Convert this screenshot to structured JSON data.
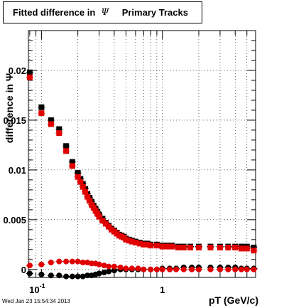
{
  "title": {
    "prefix": "Fitted difference in",
    "symbol": "Ψ",
    "suffix": "Primary Tracks"
  },
  "footer": "Wed Jan 23 15:54:34 2013",
  "chart_data": {
    "type": "scatter",
    "xlabel": "pT (GeV/c)",
    "ylabel": "difference in Ψ",
    "xscale": "log",
    "xlim": [
      0.078,
      5.9
    ],
    "ylim": [
      -0.0008,
      0.024
    ],
    "grid": true,
    "y_ticks": [
      {
        "value": 0,
        "label": "0"
      },
      {
        "value": 0.005,
        "label": "0.005"
      },
      {
        "value": 0.01,
        "label": "0.01"
      },
      {
        "value": 0.015,
        "label": "0.015"
      },
      {
        "value": 0.02,
        "label": "0.02"
      }
    ],
    "x_ticks": [
      {
        "value": 0.1,
        "base": "10",
        "exp": "-1"
      },
      {
        "value": 1,
        "base": "1",
        "exp": ""
      }
    ],
    "series": [
      {
        "color": "#000000",
        "marker": "square",
        "x": [
          0.08,
          0.1,
          0.12,
          0.14,
          0.16,
          0.18,
          0.2,
          0.21,
          0.22,
          0.23,
          0.24,
          0.25,
          0.26,
          0.27,
          0.28,
          0.29,
          0.3,
          0.32,
          0.34,
          0.36,
          0.38,
          0.4,
          0.42,
          0.44,
          0.46,
          0.48,
          0.5,
          0.53,
          0.56,
          0.6,
          0.65,
          0.7,
          0.75,
          0.8,
          0.9,
          1.0,
          1.1,
          1.2,
          1.35,
          1.5,
          1.7,
          2.0,
          2.5,
          3.0,
          3.5,
          4.0,
          4.5,
          5.0,
          5.7
        ],
        "y": [
          0.0198,
          0.0163,
          0.015,
          0.0141,
          0.0124,
          0.0108,
          0.0097,
          0.0091,
          0.0086,
          0.0081,
          0.0076,
          0.0072,
          0.0068,
          0.0064,
          0.0061,
          0.0058,
          0.0055,
          0.0051,
          0.0047,
          0.0044,
          0.0041,
          0.0039,
          0.0037,
          0.0035,
          0.0034,
          0.0033,
          0.0031,
          0.003,
          0.0029,
          0.0028,
          0.0027,
          0.0026,
          0.0026,
          0.0025,
          0.0025,
          0.0024,
          0.0024,
          0.0024,
          0.0023,
          0.0023,
          0.0023,
          0.0023,
          0.0023,
          0.0023,
          0.0023,
          0.0023,
          0.0023,
          0.0023,
          0.0022
        ]
      },
      {
        "color": "#e00000",
        "marker": "square",
        "x": [
          0.08,
          0.1,
          0.12,
          0.14,
          0.16,
          0.18,
          0.2,
          0.21,
          0.22,
          0.23,
          0.24,
          0.25,
          0.26,
          0.27,
          0.28,
          0.29,
          0.3,
          0.32,
          0.34,
          0.36,
          0.38,
          0.4,
          0.42,
          0.44,
          0.46,
          0.48,
          0.5,
          0.53,
          0.56,
          0.6,
          0.65,
          0.7,
          0.75,
          0.8,
          0.9,
          1.0,
          1.1,
          1.2,
          1.35,
          1.5,
          1.7,
          2.0,
          2.5,
          3.0,
          3.5,
          4.0,
          4.5,
          5.0,
          5.7
        ],
        "y": [
          0.0193,
          0.0157,
          0.0146,
          0.0137,
          0.0119,
          0.0104,
          0.0093,
          0.0088,
          0.0083,
          0.0078,
          0.0073,
          0.0069,
          0.0065,
          0.0062,
          0.0059,
          0.0056,
          0.0053,
          0.0049,
          0.0046,
          0.0043,
          0.004,
          0.0038,
          0.0036,
          0.0034,
          0.0033,
          0.0032,
          0.003,
          0.0029,
          0.0028,
          0.0027,
          0.0026,
          0.0025,
          0.0025,
          0.0024,
          0.0024,
          0.0023,
          0.0023,
          0.0023,
          0.0022,
          0.0022,
          0.0022,
          0.0022,
          0.0022,
          0.0022,
          0.0022,
          0.0022,
          0.0021,
          0.0021,
          0.0019
        ]
      },
      {
        "color": "#000000",
        "marker": "circle",
        "x": [
          0.08,
          0.1,
          0.12,
          0.14,
          0.16,
          0.18,
          0.2,
          0.22,
          0.24,
          0.26,
          0.28,
          0.3,
          0.33,
          0.36,
          0.4,
          0.45,
          0.5,
          0.56,
          0.63,
          0.7,
          0.8,
          0.9,
          1.0,
          1.15,
          1.3,
          1.5,
          1.75,
          2.0,
          2.5,
          3.0,
          3.5,
          4.0,
          4.5,
          5.0,
          5.7
        ],
        "y": [
          -0.0004,
          -0.0005,
          -0.0006,
          -0.0006,
          -0.0007,
          -0.0007,
          -0.0007,
          -0.0007,
          -0.0006,
          -0.0006,
          -0.0005,
          -0.0004,
          -0.0003,
          -0.0002,
          -0.0001,
          0.0,
          0.0,
          0.0,
          0.0,
          0.0,
          0.0,
          0.0,
          0.0001,
          0.0001,
          0.0001,
          0.0002,
          0.0002,
          0.0002,
          0.0002,
          0.0002,
          0.0002,
          0.0002,
          0.0001,
          0.0001,
          0.0001
        ]
      },
      {
        "color": "#e00000",
        "marker": "circle",
        "x": [
          0.08,
          0.1,
          0.12,
          0.14,
          0.16,
          0.18,
          0.2,
          0.22,
          0.24,
          0.26,
          0.28,
          0.3,
          0.33,
          0.36,
          0.4,
          0.45,
          0.5,
          0.56,
          0.63,
          0.7,
          0.8,
          0.9,
          1.0,
          1.15,
          1.3,
          1.5,
          1.75,
          2.0,
          2.5,
          3.0,
          3.5,
          4.0,
          4.5,
          5.0,
          5.7
        ],
        "y": [
          0.0004,
          0.0005,
          0.0007,
          0.0008,
          0.0008,
          0.0008,
          0.0008,
          0.0007,
          0.0007,
          0.0006,
          0.0006,
          0.0005,
          0.0004,
          0.0003,
          0.0003,
          0.0002,
          0.0001,
          0.0001,
          0.0001,
          0.0,
          0.0,
          0.0,
          0.0,
          0.0,
          0.0,
          0.0,
          0.0,
          0.0,
          0.0,
          0.0,
          0.0,
          0.0,
          0.0,
          0.0,
          0.0
        ]
      }
    ]
  }
}
